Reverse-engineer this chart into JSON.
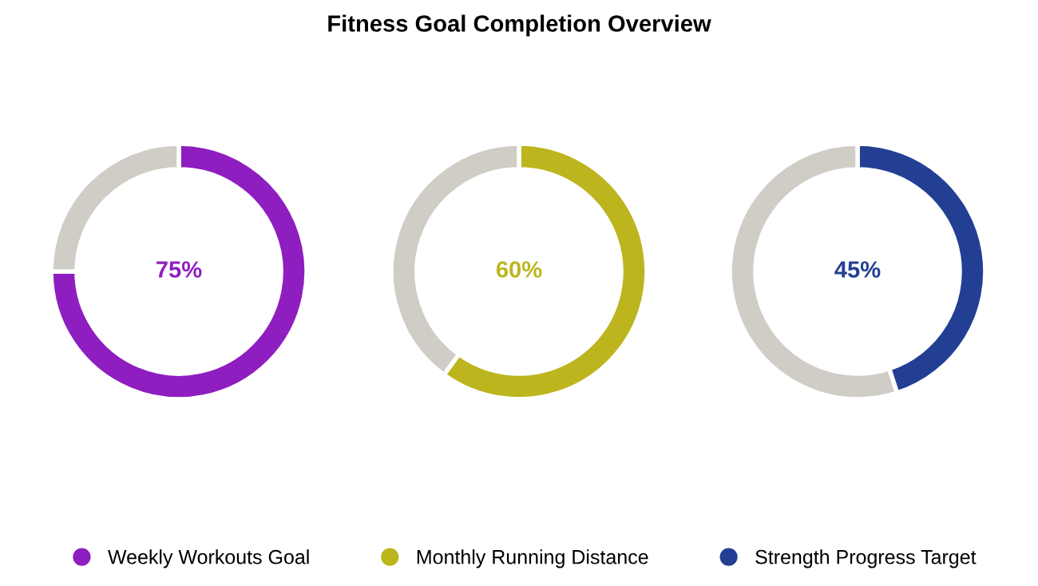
{
  "chart_data": [
    {
      "type": "donut",
      "categories": [
        "Weekly Workouts Goal",
        null
      ],
      "values": [
        75,
        25
      ],
      "colors": [
        "#8e1ec0",
        "#d0ccc6"
      ],
      "value_labels": [
        "75%",
        null
      ],
      "legend": "bottom"
    },
    {
      "type": "donut",
      "title": "Fitness Goal Completion Overview",
      "categories": [
        "Monthly Running Distance",
        null
      ],
      "values": [
        60,
        40
      ],
      "colors": [
        "#bcb51e",
        "#d0ccc6"
      ],
      "value_labels": [
        "60%",
        null
      ],
      "legend": "bottom"
    },
    {
      "type": "donut",
      "categories": [
        "Strength Progress Target",
        null
      ],
      "values": [
        45,
        55
      ],
      "colors": [
        "#233f94",
        "#d0ccc6"
      ],
      "value_labels": [
        "45%",
        null
      ],
      "legend": "bottom"
    }
  ]
}
